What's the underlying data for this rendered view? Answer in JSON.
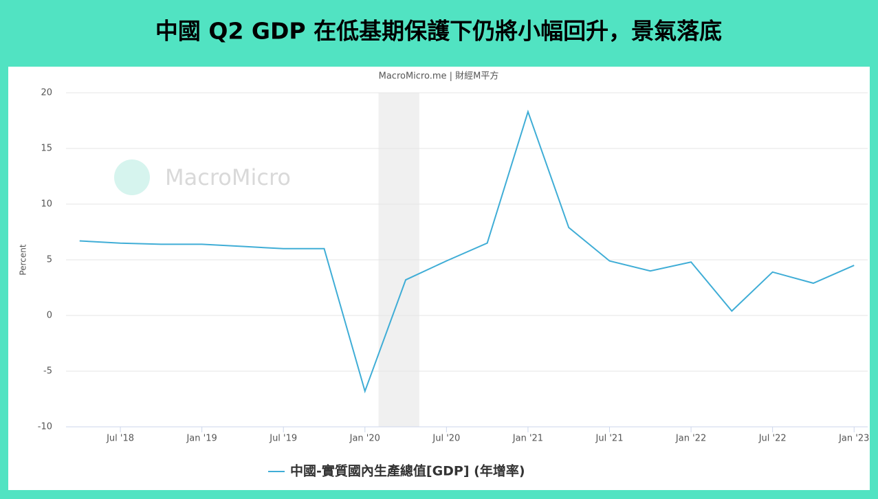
{
  "chart_data": {
    "type": "line",
    "title": "中國 Q2 GDP 在低基期保護下仍將小幅回升，景氣落底",
    "subtitle": "MacroMicro.me | 財經M平方",
    "watermark": "MacroMicro",
    "y_label": "Percent",
    "x": [
      "2018-04",
      "2018-07",
      "2018-10",
      "2019-01",
      "2019-04",
      "2019-07",
      "2019-10",
      "2020-01",
      "2020-04",
      "2020-07",
      "2020-10",
      "2021-01",
      "2021-04",
      "2021-07",
      "2021-10",
      "2022-01",
      "2022-04",
      "2022-07",
      "2022-10",
      "2023-01"
    ],
    "series": [
      {
        "name": "中國-實質國內生產總值[GDP] (年增率)",
        "color": "#3fadd6",
        "values": [
          6.7,
          6.5,
          6.4,
          6.4,
          6.2,
          6.0,
          6.0,
          -6.8,
          3.2,
          4.9,
          6.5,
          18.3,
          7.9,
          4.9,
          4.0,
          4.8,
          0.4,
          3.9,
          2.9,
          4.5
        ]
      }
    ],
    "xlim": [
      "2018-03",
      "2023-02"
    ],
    "xticks": [
      {
        "value": "2018-07",
        "label": "Jul '18"
      },
      {
        "value": "2019-01",
        "label": "Jan '19"
      },
      {
        "value": "2019-07",
        "label": "Jul '19"
      },
      {
        "value": "2020-01",
        "label": "Jan '20"
      },
      {
        "value": "2020-07",
        "label": "Jul '20"
      },
      {
        "value": "2021-01",
        "label": "Jan '21"
      },
      {
        "value": "2021-07",
        "label": "Jul '21"
      },
      {
        "value": "2022-01",
        "label": "Jan '22"
      },
      {
        "value": "2022-07",
        "label": "Jul '22"
      },
      {
        "value": "2023-01",
        "label": "Jan '23"
      }
    ],
    "ylim": [
      -10,
      20
    ],
    "yticks": [
      -10,
      -5,
      0,
      5,
      10,
      15,
      20
    ],
    "grid": true,
    "shaded_range": [
      "2020-02",
      "2020-05"
    ],
    "legend": "bottom"
  }
}
